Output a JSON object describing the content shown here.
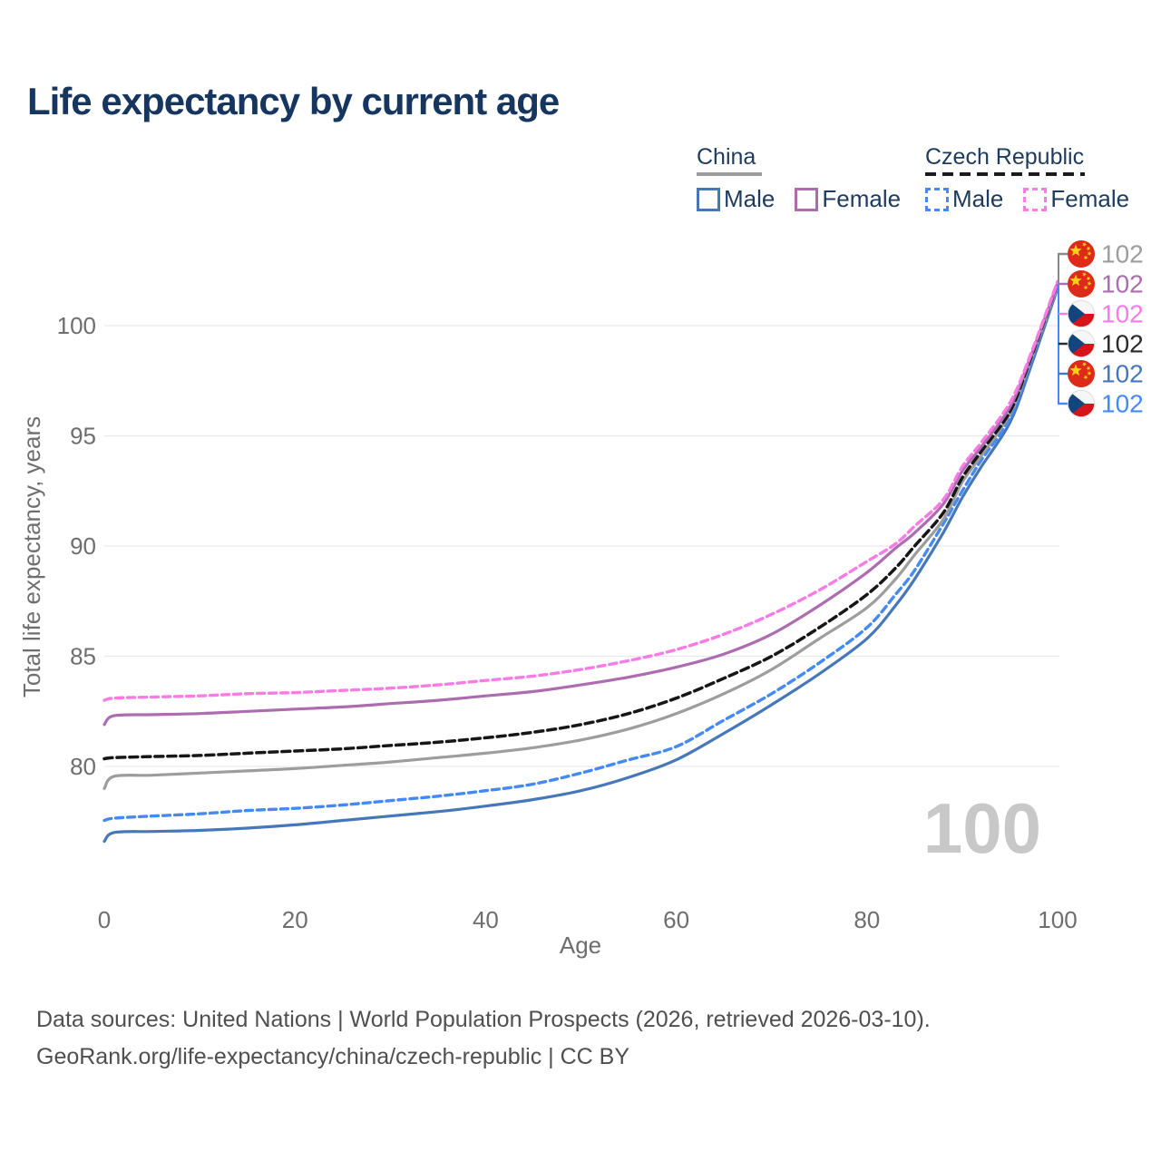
{
  "title": "Life expectancy by current age",
  "legend": {
    "china": {
      "label": "China",
      "male_label": "Male",
      "female_label": "Female"
    },
    "czech": {
      "label": "Czech Republic",
      "male_label": "Male",
      "female_label": "Female"
    }
  },
  "chart_data": {
    "type": "line",
    "title": "Life expectancy by current age",
    "xlabel": "Age",
    "ylabel": "Total life expectancy, years",
    "xticks": [
      0,
      20,
      40,
      60,
      80,
      100
    ],
    "yticks": [
      80,
      85,
      90,
      95,
      100
    ],
    "xlim": [
      0,
      100
    ],
    "ylim": [
      76,
      103
    ],
    "grid": "horizontal",
    "legend_position": "top-right",
    "watermark_age": "100",
    "x_ages": [
      0,
      1,
      5,
      10,
      15,
      20,
      25,
      30,
      35,
      40,
      45,
      50,
      55,
      60,
      65,
      70,
      75,
      80,
      83,
      85,
      88,
      90,
      92,
      95,
      97,
      100
    ],
    "series": [
      {
        "name": "China Male",
        "slug": "china-male",
        "country": "China",
        "sex": "Male",
        "style": "solid",
        "color": "#4678b9",
        "width": 3.2,
        "values": [
          76.6,
          77.0,
          77.05,
          77.1,
          77.2,
          77.35,
          77.55,
          77.75,
          77.95,
          78.2,
          78.5,
          78.9,
          79.5,
          80.3,
          81.5,
          82.8,
          84.2,
          85.8,
          87.3,
          88.5,
          90.6,
          92.2,
          93.6,
          95.6,
          97.9,
          101.7
        ]
      },
      {
        "name": "Czech Republic Male",
        "slug": "czech-male",
        "country": "Czech Republic",
        "sex": "Male",
        "style": "dashed",
        "color": "#4489f4",
        "width": 3.4,
        "values": [
          77.55,
          77.65,
          77.75,
          77.85,
          78.0,
          78.1,
          78.25,
          78.45,
          78.65,
          78.9,
          79.2,
          79.7,
          80.3,
          80.9,
          82.1,
          83.3,
          84.7,
          86.3,
          87.8,
          88.9,
          91.0,
          92.5,
          93.9,
          95.8,
          98.1,
          101.8
        ]
      },
      {
        "name": "China Total",
        "slug": "china-total",
        "country": "China",
        "sex": "Both",
        "style": "solid",
        "color": "#9d9d9d",
        "width": 3.2,
        "values": [
          79.0,
          79.55,
          79.6,
          79.7,
          79.8,
          79.9,
          80.05,
          80.2,
          80.4,
          80.6,
          80.85,
          81.2,
          81.7,
          82.4,
          83.3,
          84.4,
          85.8,
          87.2,
          88.5,
          89.6,
          91.2,
          92.9,
          94.1,
          96.0,
          98.2,
          101.8
        ]
      },
      {
        "name": "Czech Republic Total",
        "slug": "czech-total",
        "country": "Czech Republic",
        "sex": "Both",
        "style": "dashed",
        "color": "#161616",
        "width": 3.5,
        "values": [
          80.35,
          80.4,
          80.45,
          80.5,
          80.6,
          80.7,
          80.8,
          80.95,
          81.1,
          81.3,
          81.55,
          81.9,
          82.4,
          83.1,
          84.0,
          85.0,
          86.3,
          87.8,
          89.0,
          90.0,
          91.5,
          93.1,
          94.3,
          96.1,
          98.3,
          101.9
        ]
      },
      {
        "name": "China Female",
        "slug": "china-female",
        "country": "China",
        "sex": "Female",
        "style": "solid",
        "color": "#ad6cb0",
        "width": 3.2,
        "values": [
          81.9,
          82.3,
          82.35,
          82.4,
          82.5,
          82.6,
          82.7,
          82.85,
          83.0,
          83.2,
          83.4,
          83.7,
          84.05,
          84.5,
          85.1,
          86.0,
          87.3,
          88.8,
          89.9,
          90.6,
          91.9,
          93.4,
          94.5,
          96.3,
          98.4,
          101.9
        ]
      },
      {
        "name": "Czech Republic Female",
        "slug": "czech-female",
        "country": "Czech Republic",
        "sex": "Female",
        "style": "dashed",
        "color": "#fa7ae6",
        "width": 3.4,
        "values": [
          83.0,
          83.1,
          83.15,
          83.2,
          83.3,
          83.35,
          83.45,
          83.55,
          83.7,
          83.9,
          84.1,
          84.4,
          84.8,
          85.3,
          86.0,
          86.9,
          88.0,
          89.3,
          90.1,
          90.9,
          92.1,
          93.6,
          94.7,
          96.5,
          98.5,
          102.0
        ]
      }
    ],
    "end_labels": [
      {
        "flag": "china",
        "series": "China Total",
        "value": "102",
        "color": "#9d9d9d",
        "tick_color": "#888888"
      },
      {
        "flag": "china",
        "series": "China Female",
        "value": "102",
        "color": "#a96fac",
        "tick_color": "#a96fac"
      },
      {
        "flag": "czech",
        "series": "Czech Republic Female",
        "value": "102",
        "color": "#fa7ae6",
        "tick_color": "#fa7ae6"
      },
      {
        "flag": "czech",
        "series": "Czech Republic Total",
        "value": "102",
        "color": "#2a2a2a",
        "tick_color": "#2a2a2a"
      },
      {
        "flag": "china",
        "series": "China Male",
        "value": "102",
        "color": "#4678b9",
        "tick_color": "#4678b9"
      },
      {
        "flag": "czech",
        "series": "Czech Republic Male",
        "value": "102",
        "color": "#4489f4",
        "tick_color": "#4489f4"
      }
    ],
    "flag_colors": {
      "china_red": "#de2a18",
      "star_yellow": "#fcd116",
      "czech_white": "#f6f6f6",
      "czech_red": "#d7141a",
      "czech_blue": "#11457e"
    }
  },
  "footer": {
    "line1": "Data sources: United Nations | World Population Prospects (2026, retrieved 2026-03-10).",
    "line2": "GeoRank.org/life-expectancy/china/czech-republic | CC BY"
  }
}
